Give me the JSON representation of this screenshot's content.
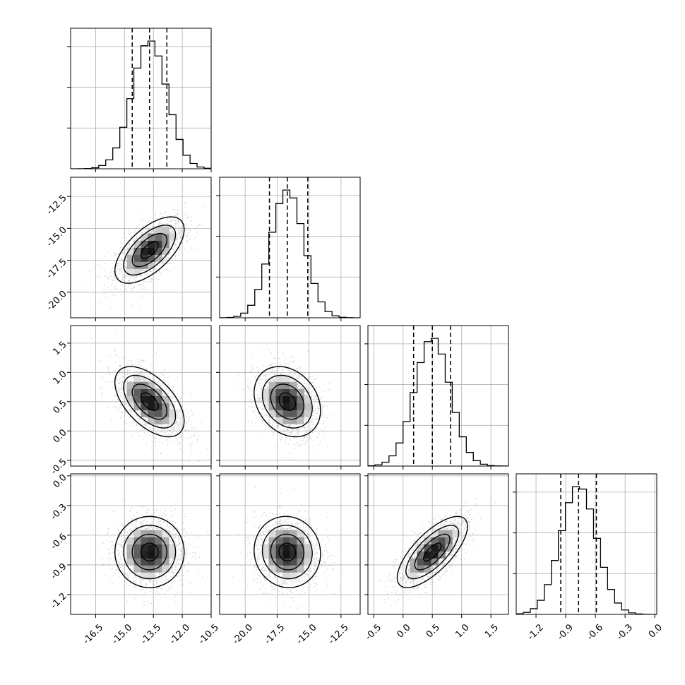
{
  "chart_data": {
    "type": "corner",
    "grid": true,
    "colors": {
      "points": "#9a9a9a",
      "line": "#000000",
      "grid": "#b0b0b0"
    },
    "parameters": [
      {
        "range": [
          -17.8,
          -10.5
        ],
        "ticks": [
          "-16.5",
          "-15.0",
          "-13.5",
          "-12.0",
          "-10.5"
        ],
        "tick_values": [
          -16.5,
          -15.0,
          -13.5,
          -12.0,
          -10.5
        ],
        "mean": -13.7,
        "std": 0.9,
        "quantiles": [
          -14.6,
          -13.7,
          -12.8
        ]
      },
      {
        "range": [
          -22.0,
          -11.0
        ],
        "ticks": [
          "-12.5",
          "-15.0",
          "-17.5",
          "-20.0"
        ],
        "tick_values": [
          -12.5,
          -15.0,
          -17.5,
          -20.0
        ],
        "xticks": [
          "-20.0",
          "-17.5",
          "-15.0",
          "-12.5"
        ],
        "xtick_values": [
          -20.0,
          -17.5,
          -15.0,
          -12.5
        ],
        "mean": -16.7,
        "std": 1.3,
        "quantiles": [
          -18.1,
          -16.7,
          -15.1
        ]
      },
      {
        "range": [
          -0.6,
          1.8
        ],
        "ticks": [
          "1.5",
          "1.0",
          "0.5",
          "0.0",
          "-0.5"
        ],
        "tick_values": [
          1.5,
          1.0,
          0.5,
          0.0,
          -0.5
        ],
        "xticks": [
          "-0.5",
          "0.0",
          "0.5",
          "1.0",
          "1.5"
        ],
        "xtick_values": [
          -0.5,
          0.0,
          0.5,
          1.0,
          1.5
        ],
        "mean": 0.5,
        "std": 0.3,
        "quantiles": [
          0.18,
          0.5,
          0.81
        ]
      },
      {
        "range": [
          -1.4,
          0.02
        ],
        "ticks": [
          "0.0",
          "-0.3",
          "-0.6",
          "-0.9",
          "-1.2"
        ],
        "tick_values": [
          0.0,
          -0.3,
          -0.6,
          -0.9,
          -1.2
        ],
        "xticks": [
          "-1.2",
          "-0.9",
          "-0.6",
          "-0.3",
          "0.0"
        ],
        "xtick_values": [
          -1.2,
          -0.9,
          -0.6,
          -0.3,
          0.0
        ],
        "mean": -0.77,
        "std": 0.18,
        "quantiles": [
          -0.95,
          -0.77,
          -0.59
        ]
      }
    ],
    "correlations": [
      [
        1.0,
        0.62,
        -0.55,
        0.0
      ],
      [
        0.62,
        1.0,
        -0.25,
        -0.05
      ],
      [
        -0.55,
        -0.25,
        1.0,
        0.72
      ],
      [
        0.0,
        -0.05,
        0.72,
        1.0
      ]
    ]
  }
}
